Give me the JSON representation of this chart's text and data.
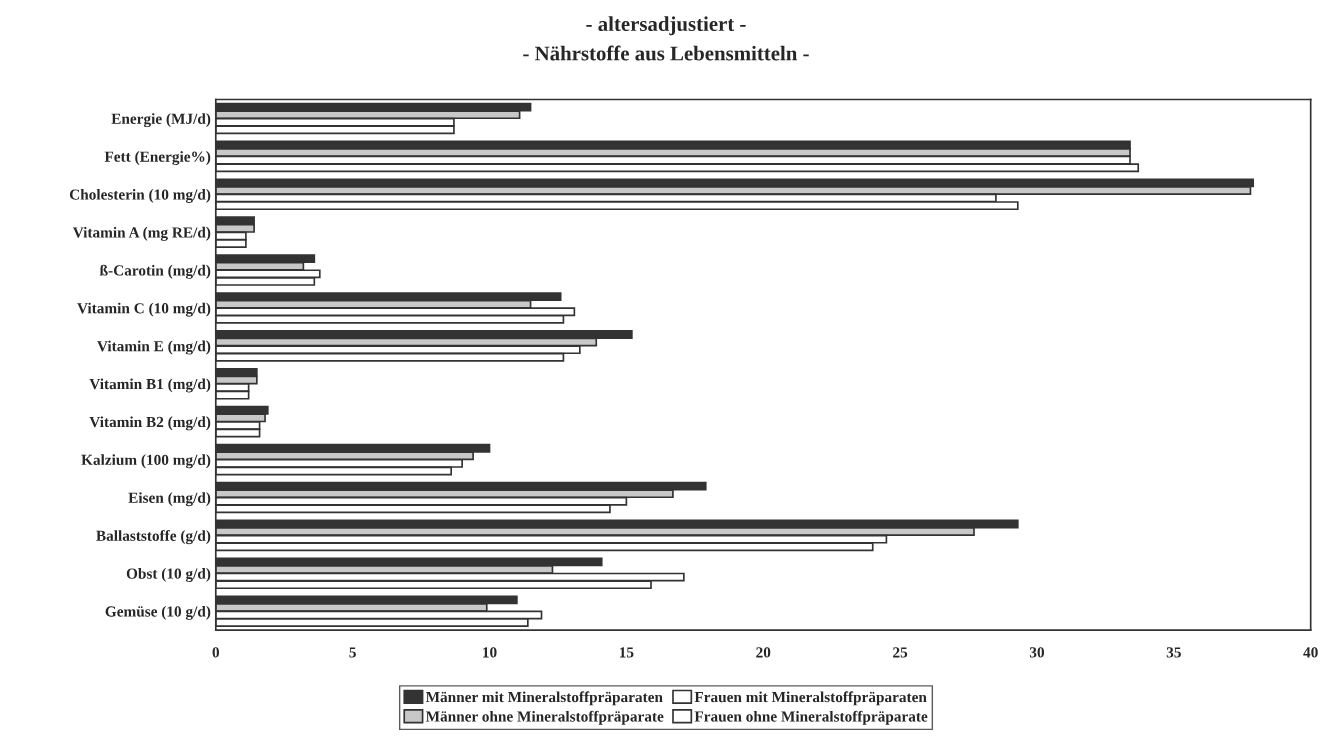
{
  "chart_data": {
    "type": "bar",
    "orientation": "horizontal",
    "title": "- altersadjustiert -",
    "subtitle": "- Nährstoffe aus Lebensmitteln -",
    "categories": [
      "Energie (MJ/d)",
      "Fett (Energie%)",
      "Cholesterin (10 mg/d)",
      "Vitamin A (mg RE/d)",
      "ß-Carotin (mg/d)",
      "Vitamin C (10 mg/d)",
      "Vitamin E (mg/d)",
      "Vitamin B1 (mg/d)",
      "Vitamin B2 (mg/d)",
      "Kalzium (100 mg/d)",
      "Eisen (mg/d)",
      "Ballaststoffe (g/d)",
      "Obst (10 g/d)",
      "Gemüse (10 g/d)"
    ],
    "series": [
      {
        "name": "Männer mit Mineralstoffpräparaten",
        "color": "#333333",
        "values": [
          11.5,
          33.4,
          37.9,
          1.4,
          3.6,
          12.6,
          15.2,
          1.5,
          1.9,
          10.0,
          17.9,
          29.3,
          14.1,
          11.0
        ]
      },
      {
        "name": "Männer ohne Mineralstoffpräparate",
        "color": "#c8c8c8",
        "values": [
          11.1,
          33.4,
          37.8,
          1.4,
          3.2,
          11.5,
          13.9,
          1.5,
          1.8,
          9.4,
          16.7,
          27.7,
          12.3,
          9.9
        ]
      },
      {
        "name": "Frauen mit Mineralstoffpräparaten",
        "color": "#ffffff",
        "values": [
          8.7,
          33.4,
          28.5,
          1.1,
          3.8,
          13.1,
          13.3,
          1.2,
          1.6,
          9.0,
          15.0,
          24.5,
          17.1,
          11.9
        ]
      },
      {
        "name": "Frauen ohne Mineralstoffpräparate",
        "color": "#ffffff",
        "values": [
          8.7,
          33.7,
          29.3,
          1.1,
          3.6,
          12.7,
          12.7,
          1.2,
          1.6,
          8.6,
          14.4,
          24.0,
          15.9,
          11.4
        ]
      }
    ],
    "xlim": [
      0,
      40
    ],
    "xticks": [
      0,
      5,
      10,
      15,
      20,
      25,
      30,
      35,
      40
    ],
    "grid": false,
    "legend": "bottom"
  }
}
